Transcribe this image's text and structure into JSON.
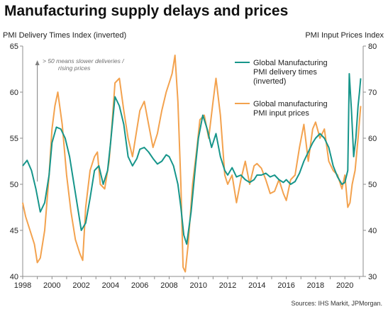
{
  "colors": {
    "delivery": "#16958a",
    "prices": "#f3a24e",
    "annotation": "#7f7f7f",
    "axis": "#8c8c8c"
  },
  "chart_data": {
    "type": "line",
    "title": "Manufacturing supply delays and prices",
    "ylabel_left": "PMI Delivery Times Index (inverted)",
    "ylabel_right": "PMI Input Prices Index",
    "source": "Sources: IHS Markit, JPMorgan.",
    "annotation": [
      "> 50 means slower deliveries /",
      "rising prices"
    ],
    "legend_placement": "top-right",
    "grid": false,
    "xlim": [
      1998,
      2021.25
    ],
    "ylim_left": [
      40,
      65
    ],
    "ylim_right": [
      30,
      80
    ],
    "x_ticks": [
      "1998",
      "2000",
      "2002",
      "2004",
      "2006",
      "2008",
      "2010",
      "2012",
      "2014",
      "2016",
      "2018",
      "2020"
    ],
    "y_ticks_left": [
      "40",
      "45",
      "50",
      "55",
      "60",
      "65"
    ],
    "y_ticks_right": [
      "30",
      "40",
      "50",
      "60",
      "70",
      "80"
    ],
    "series": [
      {
        "name": "Global Manufacturing PMI delivery times (inverted)",
        "axis": "left",
        "legend_lines": [
          "Global Manufacturing",
          "PMI delivery times",
          "(inverted)"
        ],
        "points": [
          [
            1998.0,
            52.0
          ],
          [
            1998.3,
            52.6
          ],
          [
            1998.6,
            51.5
          ],
          [
            1998.9,
            49.5
          ],
          [
            1999.2,
            47.0
          ],
          [
            1999.5,
            48.0
          ],
          [
            1999.8,
            51.0
          ],
          [
            2000.0,
            54.5
          ],
          [
            2000.3,
            56.2
          ],
          [
            2000.6,
            56.0
          ],
          [
            2000.9,
            55.0
          ],
          [
            2001.2,
            53.0
          ],
          [
            2001.5,
            50.0
          ],
          [
            2001.8,
            47.0
          ],
          [
            2002.0,
            45.0
          ],
          [
            2002.3,
            45.8
          ],
          [
            2002.6,
            48.5
          ],
          [
            2002.9,
            51.5
          ],
          [
            2003.2,
            52.0
          ],
          [
            2003.5,
            50.0
          ],
          [
            2003.8,
            51.5
          ],
          [
            2004.0,
            54.5
          ],
          [
            2004.3,
            59.5
          ],
          [
            2004.6,
            58.5
          ],
          [
            2004.9,
            56.5
          ],
          [
            2005.2,
            53.0
          ],
          [
            2005.5,
            52.0
          ],
          [
            2005.8,
            52.8
          ],
          [
            2006.0,
            53.8
          ],
          [
            2006.3,
            54.0
          ],
          [
            2006.6,
            53.5
          ],
          [
            2006.9,
            52.8
          ],
          [
            2007.2,
            52.2
          ],
          [
            2007.5,
            52.5
          ],
          [
            2007.8,
            53.2
          ],
          [
            2008.0,
            53.0
          ],
          [
            2008.3,
            52.0
          ],
          [
            2008.6,
            50.0
          ],
          [
            2008.8,
            47.5
          ],
          [
            2009.0,
            44.5
          ],
          [
            2009.2,
            43.5
          ],
          [
            2009.5,
            47.0
          ],
          [
            2009.8,
            52.0
          ],
          [
            2010.0,
            55.0
          ],
          [
            2010.3,
            57.5
          ],
          [
            2010.6,
            56.0
          ],
          [
            2010.9,
            54.0
          ],
          [
            2011.2,
            55.5
          ],
          [
            2011.5,
            53.0
          ],
          [
            2011.8,
            51.5
          ],
          [
            2012.0,
            51.0
          ],
          [
            2012.3,
            51.8
          ],
          [
            2012.6,
            50.8
          ],
          [
            2012.9,
            51.0
          ],
          [
            2013.2,
            50.5
          ],
          [
            2013.5,
            50.2
          ],
          [
            2013.8,
            50.5
          ],
          [
            2014.0,
            51.0
          ],
          [
            2014.3,
            51.0
          ],
          [
            2014.6,
            51.2
          ],
          [
            2014.9,
            50.8
          ],
          [
            2015.2,
            51.0
          ],
          [
            2015.5,
            50.5
          ],
          [
            2015.8,
            50.2
          ],
          [
            2016.0,
            50.5
          ],
          [
            2016.3,
            50.0
          ],
          [
            2016.6,
            50.3
          ],
          [
            2016.9,
            51.2
          ],
          [
            2017.2,
            52.5
          ],
          [
            2017.5,
            53.5
          ],
          [
            2017.8,
            54.5
          ],
          [
            2018.0,
            55.0
          ],
          [
            2018.3,
            55.5
          ],
          [
            2018.6,
            55.0
          ],
          [
            2018.9,
            54.0
          ],
          [
            2019.2,
            52.0
          ],
          [
            2019.5,
            50.8
          ],
          [
            2019.8,
            50.0
          ],
          [
            2020.0,
            50.2
          ],
          [
            2020.2,
            51.5
          ],
          [
            2020.3,
            62.0
          ],
          [
            2020.45,
            58.0
          ],
          [
            2020.6,
            53.0
          ],
          [
            2020.75,
            55.0
          ],
          [
            2020.9,
            58.5
          ],
          [
            2021.0,
            60.0
          ],
          [
            2021.08,
            61.5
          ]
        ]
      },
      {
        "name": "Global manufacturing PMI input prices",
        "axis": "right",
        "legend_lines": [
          "Global manufacturing",
          "PMI input prices"
        ],
        "points": [
          [
            1998.0,
            46.0
          ],
          [
            1998.2,
            43.0
          ],
          [
            1998.5,
            40.0
          ],
          [
            1998.8,
            37.0
          ],
          [
            1999.0,
            33.0
          ],
          [
            1999.2,
            34.0
          ],
          [
            1999.5,
            40.0
          ],
          [
            1999.8,
            52.0
          ],
          [
            2000.0,
            62.0
          ],
          [
            2000.2,
            67.0
          ],
          [
            2000.4,
            70.0
          ],
          [
            2000.7,
            63.0
          ],
          [
            2001.0,
            52.0
          ],
          [
            2001.3,
            44.0
          ],
          [
            2001.6,
            38.0
          ],
          [
            2001.9,
            35.0
          ],
          [
            2002.1,
            33.5
          ],
          [
            2002.3,
            45.0
          ],
          [
            2002.6,
            53.0
          ],
          [
            2002.9,
            56.0
          ],
          [
            2003.1,
            57.0
          ],
          [
            2003.3,
            50.0
          ],
          [
            2003.6,
            49.0
          ],
          [
            2003.9,
            55.0
          ],
          [
            2004.1,
            63.0
          ],
          [
            2004.3,
            72.0
          ],
          [
            2004.6,
            73.0
          ],
          [
            2004.9,
            66.0
          ],
          [
            2005.2,
            60.0
          ],
          [
            2005.5,
            56.0
          ],
          [
            2005.8,
            62.0
          ],
          [
            2006.0,
            66.0
          ],
          [
            2006.3,
            68.0
          ],
          [
            2006.6,
            63.0
          ],
          [
            2006.9,
            58.0
          ],
          [
            2007.2,
            61.0
          ],
          [
            2007.5,
            66.0
          ],
          [
            2007.8,
            70.0
          ],
          [
            2008.0,
            72.0
          ],
          [
            2008.2,
            74.0
          ],
          [
            2008.4,
            78.0
          ],
          [
            2008.6,
            68.0
          ],
          [
            2008.8,
            50.0
          ],
          [
            2008.95,
            32.0
          ],
          [
            2009.1,
            31.0
          ],
          [
            2009.3,
            37.0
          ],
          [
            2009.6,
            50.0
          ],
          [
            2009.9,
            58.0
          ],
          [
            2010.1,
            64.0
          ],
          [
            2010.4,
            65.0
          ],
          [
            2010.7,
            60.0
          ],
          [
            2011.0,
            68.0
          ],
          [
            2011.2,
            73.0
          ],
          [
            2011.5,
            65.0
          ],
          [
            2011.8,
            52.0
          ],
          [
            2012.0,
            50.0
          ],
          [
            2012.3,
            52.0
          ],
          [
            2012.6,
            46.0
          ],
          [
            2012.9,
            51.0
          ],
          [
            2013.2,
            55.0
          ],
          [
            2013.5,
            50.0
          ],
          [
            2013.8,
            54.0
          ],
          [
            2014.0,
            54.5
          ],
          [
            2014.3,
            53.5
          ],
          [
            2014.6,
            51.0
          ],
          [
            2014.9,
            48.0
          ],
          [
            2015.2,
            48.5
          ],
          [
            2015.5,
            51.0
          ],
          [
            2015.8,
            48.0
          ],
          [
            2016.0,
            46.5
          ],
          [
            2016.3,
            51.0
          ],
          [
            2016.6,
            52.0
          ],
          [
            2016.9,
            58.0
          ],
          [
            2017.2,
            63.0
          ],
          [
            2017.5,
            55.0
          ],
          [
            2017.8,
            62.0
          ],
          [
            2018.0,
            63.5
          ],
          [
            2018.3,
            60.0
          ],
          [
            2018.6,
            62.0
          ],
          [
            2018.9,
            55.0
          ],
          [
            2019.2,
            53.0
          ],
          [
            2019.5,
            52.0
          ],
          [
            2019.8,
            49.0
          ],
          [
            2020.0,
            52.0
          ],
          [
            2020.2,
            45.0
          ],
          [
            2020.35,
            46.0
          ],
          [
            2020.5,
            50.0
          ],
          [
            2020.7,
            53.0
          ],
          [
            2020.9,
            60.0
          ],
          [
            2021.08,
            67.0
          ]
        ]
      }
    ]
  }
}
